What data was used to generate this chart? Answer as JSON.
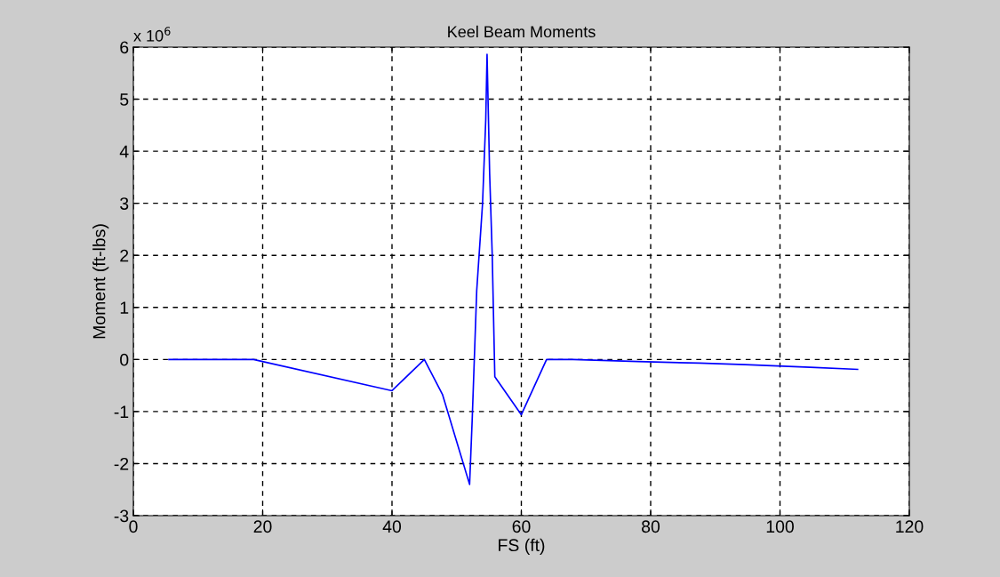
{
  "chart_data": {
    "type": "line",
    "title": "Keel Beam Moments",
    "xlabel": "FS (ft)",
    "ylabel": "Moment (ft-lbs)",
    "annotations": [
      "x 10$^{6}$"
    ],
    "x": [
      5.5,
      18.6,
      40,
      45,
      47.8,
      52,
      52.4,
      53.1,
      54.0,
      54.5,
      54.7,
      55.1,
      55.5,
      55.9,
      60,
      63.9,
      68,
      78,
      87.5,
      94.6,
      104.7,
      112
    ],
    "series": [
      {
        "color": "#0000ff",
        "values": [
          0,
          0,
          -0.6,
          0,
          -0.67,
          -2.4,
          -1.16,
          1.32,
          2.99,
          4.61,
          5.86,
          3.57,
          2.0,
          -0.33,
          -1.06,
          0,
          0,
          -0.04,
          -0.07,
          -0.1,
          -0.15,
          -0.19
        ]
      }
    ],
    "xlim": [
      0,
      120
    ],
    "xticks": [
      0,
      20,
      40,
      60,
      80,
      100,
      120
    ],
    "ylim": [
      -3,
      6
    ],
    "yticks": [
      -3,
      -2,
      -1,
      0,
      1,
      2,
      3,
      4,
      5,
      6
    ],
    "grid": true,
    "line_style": "solid",
    "marker": "none",
    "legend": false
  }
}
